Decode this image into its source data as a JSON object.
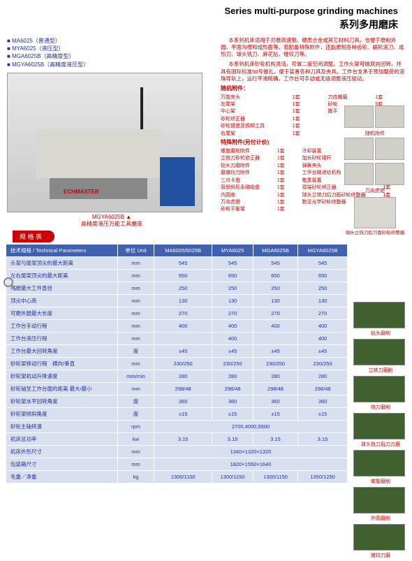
{
  "header": {
    "title_en": "Series multi-purpose grinding machines",
    "title_zh": "系列多用磨床"
  },
  "models": [
    "MA6025（普通型）",
    "MYA6025（液压型）",
    "MGA6025B（高精度型）",
    "MGYA6025B（高精度液压型）"
  ],
  "caption": {
    "label": "MGYA6025B",
    "sub": "高精度液压万能工具磨床"
  },
  "logo": "ECHMASTER",
  "desc": [
    "本系列机床适用于刃磨高速钢、硬质合金或其它材料刀具，也便于磨削外圆、平面沟槽和成形面等。若配备特殊附件，还能磨制各种齿轮、蜗轮滚刀、成形刀、球头铣刀、麻花钻、锥铰刀等。",
    "本系列机床砂轮机构灵活，可做二度空间调整。工作头架可做双向回转，并具有国际标准50号锥孔，便于装置各种刀具及夹具。工作台支承于预加载荷的滚珠导轨上，运行平滑精确。工作台可手动或无级调整液压驱动。"
  ],
  "acc_std_title": "随机附件：",
  "acc_std": [
    [
      "万能夹头",
      "1套",
      "刀齿推磨",
      "1套"
    ],
    [
      "左尾架",
      "1套",
      "砂轮",
      "5套"
    ],
    [
      "中心架",
      "1套",
      "搬手",
      "1套"
    ],
    [
      "砂轮矫正器",
      "1套",
      "",
      ""
    ],
    [
      "砂轮接盘及拆卸工具",
      "1套",
      "",
      ""
    ],
    [
      "右尾架",
      "1套",
      "",
      ""
    ]
  ],
  "acc_sp_title": "特殊附件(另付计价)",
  "acc_sp": [
    [
      "螺旋磨削附件",
      "1套",
      "冷却装置",
      "1套"
    ],
    [
      "立铣刀砂轮修正器",
      "1套",
      "加长砂轮接杆",
      "1套"
    ],
    [
      "钻头刀磨附件",
      "1套",
      "弹簧夹头",
      "14件"
    ],
    [
      "磨锥铰刀附件",
      "1套",
      "工作台微进给机构",
      "1套"
    ],
    [
      "三爪卡盘",
      "1套",
      "敬重装置",
      "1套"
    ],
    [
      "双倾斜形永磁吸盘",
      "1套",
      "双端砂轮矫正器",
      "1套"
    ],
    [
      "内圆座",
      "1套",
      "球头立铣刀后刀面砂轮修整器",
      "1套"
    ],
    [
      "万向虎钳",
      "1套",
      "数显光学砂轮修整器",
      "1套"
    ],
    [
      "砂轮平衡架",
      "1套",
      "",
      ""
    ]
  ],
  "thumb_labels": [
    "随机附件",
    "",
    "万向虎钳"
  ],
  "thumb_bottom": "球头立铣刀后刀面砂轮修整器",
  "spec_label": "规 格 表",
  "columns": [
    "技术规格 / Technical Parameters",
    "单位 Unit",
    "MA6025/6025B",
    "MYA6025",
    "MGA6025B",
    "MGYA6025B"
  ],
  "rows": [
    [
      "头架与尾架顶尖的最大距离",
      "mm",
      "545",
      "545",
      "545",
      "545"
    ],
    [
      "左右尾架顶尖的最大距离",
      "mm",
      "650",
      "650",
      "650",
      "650"
    ],
    [
      "可磨最大工件直径",
      "mm",
      "250",
      "250",
      "250",
      "250"
    ],
    [
      "顶尖中心高",
      "mm",
      "130",
      "130",
      "130",
      "130"
    ],
    [
      "可磨外圆最大长度",
      "mm",
      "270",
      "270",
      "270",
      "270"
    ],
    [
      "工作台手动行程",
      "mm",
      "400",
      "400",
      "400",
      "400"
    ],
    [
      "工作台液压行程",
      "mm",
      "",
      "400",
      "",
      "400"
    ],
    [
      "工作台最大回转角度",
      "度",
      "±45",
      "±45",
      "±45",
      "±45"
    ],
    [
      "砂轮架移动行程　横向/垂直",
      "mm",
      "230/250",
      "230/250",
      "230/250",
      "230/250"
    ],
    [
      "砂轮架机动升降速度",
      "mm/min",
      "280",
      "280",
      "280",
      "280"
    ],
    [
      "砂轮轴至工作台面的距离 最大/最小",
      "mm",
      "298/48",
      "298/48",
      "298/48",
      "298/48"
    ],
    [
      "砂轮架水平回转角度",
      "度",
      "360",
      "360",
      "360",
      "360"
    ],
    [
      "砂轮架倾斜角度",
      "度",
      "±15",
      "±15",
      "±15",
      "±15"
    ],
    [
      "砂轮主轴转速",
      "rpm",
      {
        "span": 4,
        "text": "2700,4000,5500"
      }
    ],
    [
      "机床总功率",
      "kw",
      "3.15",
      "3.15",
      "3.15",
      "3.15"
    ],
    [
      "机床外形尺寸",
      "mm",
      {
        "span": 4,
        "text": "1340×1320×1320"
      }
    ],
    [
      "包装箱尺寸",
      "mm",
      {
        "span": 4,
        "text": "1820×1550×1640"
      }
    ],
    [
      "毛重／净重",
      "kg",
      "1300/1100",
      "1300/1150",
      "1300/1150",
      "1350/1250"
    ]
  ],
  "right_thumbs": [
    "钻头磨削",
    "立铣刀磨削",
    "铣刀磨削",
    "球头铣刀后刀刃磨",
    "螺旋磨削",
    "外圆磨削",
    "锥铰刀磨"
  ],
  "colors": {
    "header_blue": "#4060b0",
    "cell_blue": "#d8e0f0",
    "accent": "#c00"
  }
}
